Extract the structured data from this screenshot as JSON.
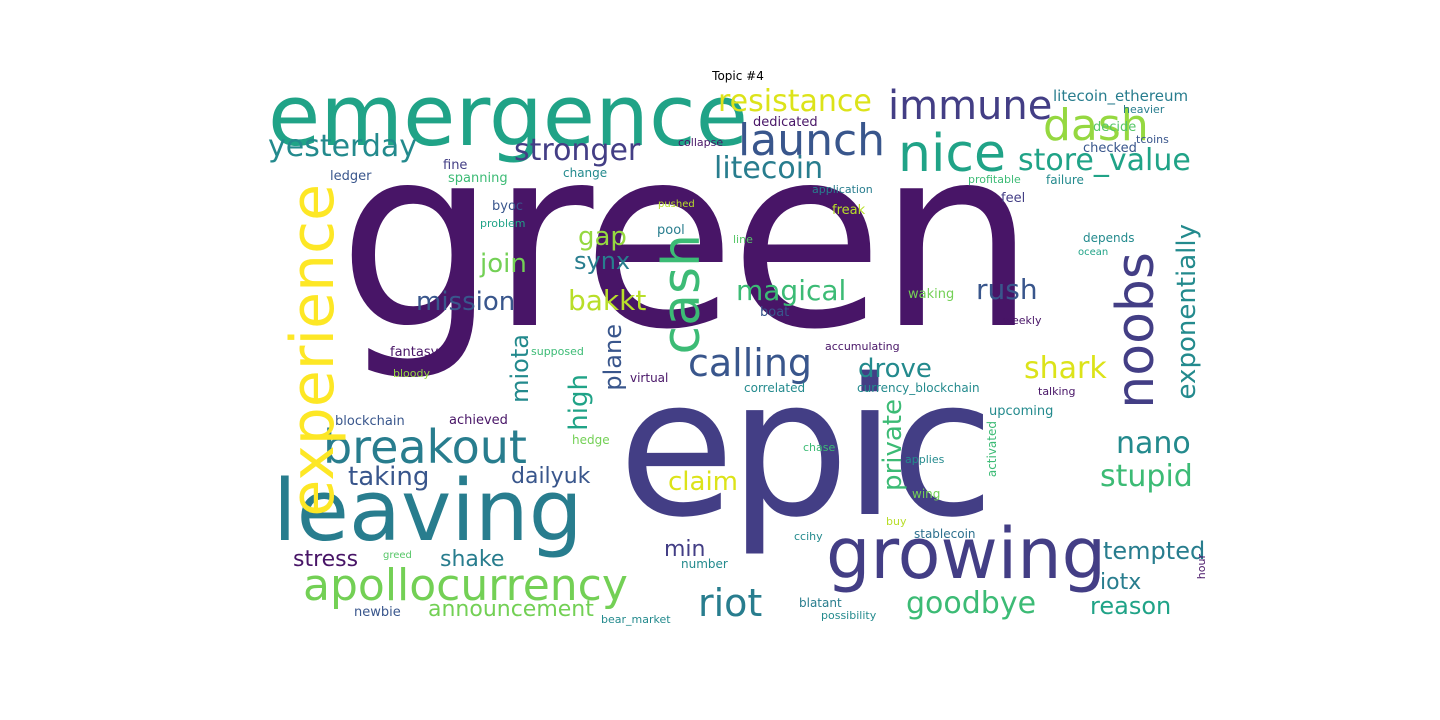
{
  "title": "Topic #4",
  "colors": {
    "c1": "#481567",
    "c2": "#433e85",
    "c3": "#2d708e",
    "c4": "#20a387",
    "c5": "#3cbb75",
    "c6": "#73d055",
    "c7": "#95d840",
    "c8": "#b8de29",
    "c9": "#dce319",
    "c10": "#fde725",
    "c11": "#287d8e",
    "c12": "#238a8d",
    "c13": "#56c667",
    "c14": "#39568c"
  },
  "words": [
    {
      "text": "green"
    },
    {
      "text": "epic"
    },
    {
      "text": "emergence"
    },
    {
      "text": "leaving"
    },
    {
      "text": "growing"
    },
    {
      "text": "apollocurrency"
    },
    {
      "text": "breakout"
    },
    {
      "text": "experience"
    },
    {
      "text": "nice"
    },
    {
      "text": "launch"
    },
    {
      "text": "immune"
    },
    {
      "text": "cash"
    },
    {
      "text": "dash"
    },
    {
      "text": "resistance"
    },
    {
      "text": "yesterday"
    },
    {
      "text": "stronger"
    },
    {
      "text": "litecoin"
    },
    {
      "text": "store_value"
    },
    {
      "text": "noobs"
    },
    {
      "text": "calling"
    },
    {
      "text": "riot"
    },
    {
      "text": "goodbye"
    },
    {
      "text": "nano"
    },
    {
      "text": "stupid"
    },
    {
      "text": "shark"
    },
    {
      "text": "exponentially"
    },
    {
      "text": "rush"
    },
    {
      "text": "magical"
    },
    {
      "text": "drove"
    },
    {
      "text": "private"
    },
    {
      "text": "mission"
    },
    {
      "text": "bakkt"
    },
    {
      "text": "join"
    },
    {
      "text": "gap"
    },
    {
      "text": "synx"
    },
    {
      "text": "miota"
    },
    {
      "text": "plane"
    },
    {
      "text": "high"
    },
    {
      "text": "claim"
    },
    {
      "text": "taking"
    },
    {
      "text": "dailyuk"
    },
    {
      "text": "stress"
    },
    {
      "text": "shake"
    },
    {
      "text": "min"
    },
    {
      "text": "tempted"
    },
    {
      "text": "iotx"
    },
    {
      "text": "reason"
    },
    {
      "text": "announcement"
    },
    {
      "text": "litecoin_ethereum"
    },
    {
      "text": "heavier"
    },
    {
      "text": "decide"
    },
    {
      "text": "tcoins"
    },
    {
      "text": "checked"
    },
    {
      "text": "failure"
    },
    {
      "text": "profitable"
    },
    {
      "text": "dedicated"
    },
    {
      "text": "collapse"
    },
    {
      "text": "change"
    },
    {
      "text": "application"
    },
    {
      "text": "fine"
    },
    {
      "text": "spanning"
    },
    {
      "text": "ledger"
    },
    {
      "text": "pushed"
    },
    {
      "text": "freak"
    },
    {
      "text": "feel"
    },
    {
      "text": "byoc"
    },
    {
      "text": "problem"
    },
    {
      "text": "pool"
    },
    {
      "text": "line"
    },
    {
      "text": "depends"
    },
    {
      "text": "ocean"
    },
    {
      "text": "waking"
    },
    {
      "text": "boat"
    },
    {
      "text": "weekly"
    },
    {
      "text": "accumulating"
    },
    {
      "text": "supposed"
    },
    {
      "text": "fantasy"
    },
    {
      "text": "bloody"
    },
    {
      "text": "virtual"
    },
    {
      "text": "correlated"
    },
    {
      "text": "currency_blockchain"
    },
    {
      "text": "talking"
    },
    {
      "text": "blockchain"
    },
    {
      "text": "achieved"
    },
    {
      "text": "upcoming"
    },
    {
      "text": "hedge"
    },
    {
      "text": "chase"
    },
    {
      "text": "applies"
    },
    {
      "text": "activated"
    },
    {
      "text": "wing"
    },
    {
      "text": "buy"
    },
    {
      "text": "stablecoin"
    },
    {
      "text": "ccihy"
    },
    {
      "text": "greed"
    },
    {
      "text": "number"
    },
    {
      "text": "hour"
    },
    {
      "text": "newbie"
    },
    {
      "text": "bear_market"
    },
    {
      "text": "blatant"
    },
    {
      "text": "possibility"
    }
  ]
}
